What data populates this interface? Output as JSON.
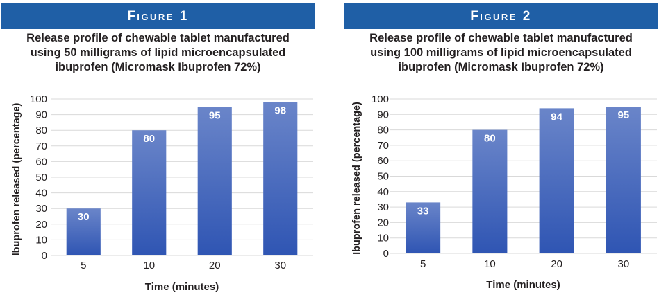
{
  "theme": {
    "banner_color": "#1f5fa6",
    "bar_top": "#6a85c9",
    "bar_bottom": "#2f55b3",
    "grid_color": "#d9d9d9",
    "label_color": "#ffffff"
  },
  "chart_data": [
    {
      "type": "bar",
      "figure_label": "Figure 1",
      "title": "Release profile of chewable tablet manufactured\nusing 50 milligrams of lipid microencapsulated\nibuprofen (Micromask Ibuprofen 72%)",
      "xlabel": "Time (minutes)",
      "ylabel": "Ibuprofen released (percentage)",
      "categories": [
        "5",
        "10",
        "20",
        "30"
      ],
      "values": [
        30,
        80,
        95,
        98
      ],
      "ylim": [
        0,
        100
      ],
      "yticks": [
        "0",
        "10",
        "20",
        "30",
        "40",
        "50",
        "60",
        "70",
        "80",
        "90",
        "100"
      ],
      "grid": true
    },
    {
      "type": "bar",
      "figure_label": "Figure 2",
      "title": "Release profile of chewable tablet manufactured\nusing 100 milligrams of lipid microencapsulated\nibuprofen (Micromask Ibuprofen 72%)",
      "xlabel": "Time (minutes)",
      "ylabel": "Ibuprofen released (percentage)",
      "categories": [
        "5",
        "10",
        "20",
        "30"
      ],
      "values": [
        33,
        80,
        94,
        95
      ],
      "ylim": [
        0,
        100
      ],
      "yticks": [
        "0",
        "10",
        "20",
        "30",
        "40",
        "50",
        "60",
        "70",
        "80",
        "90",
        "100"
      ],
      "grid": true
    }
  ]
}
